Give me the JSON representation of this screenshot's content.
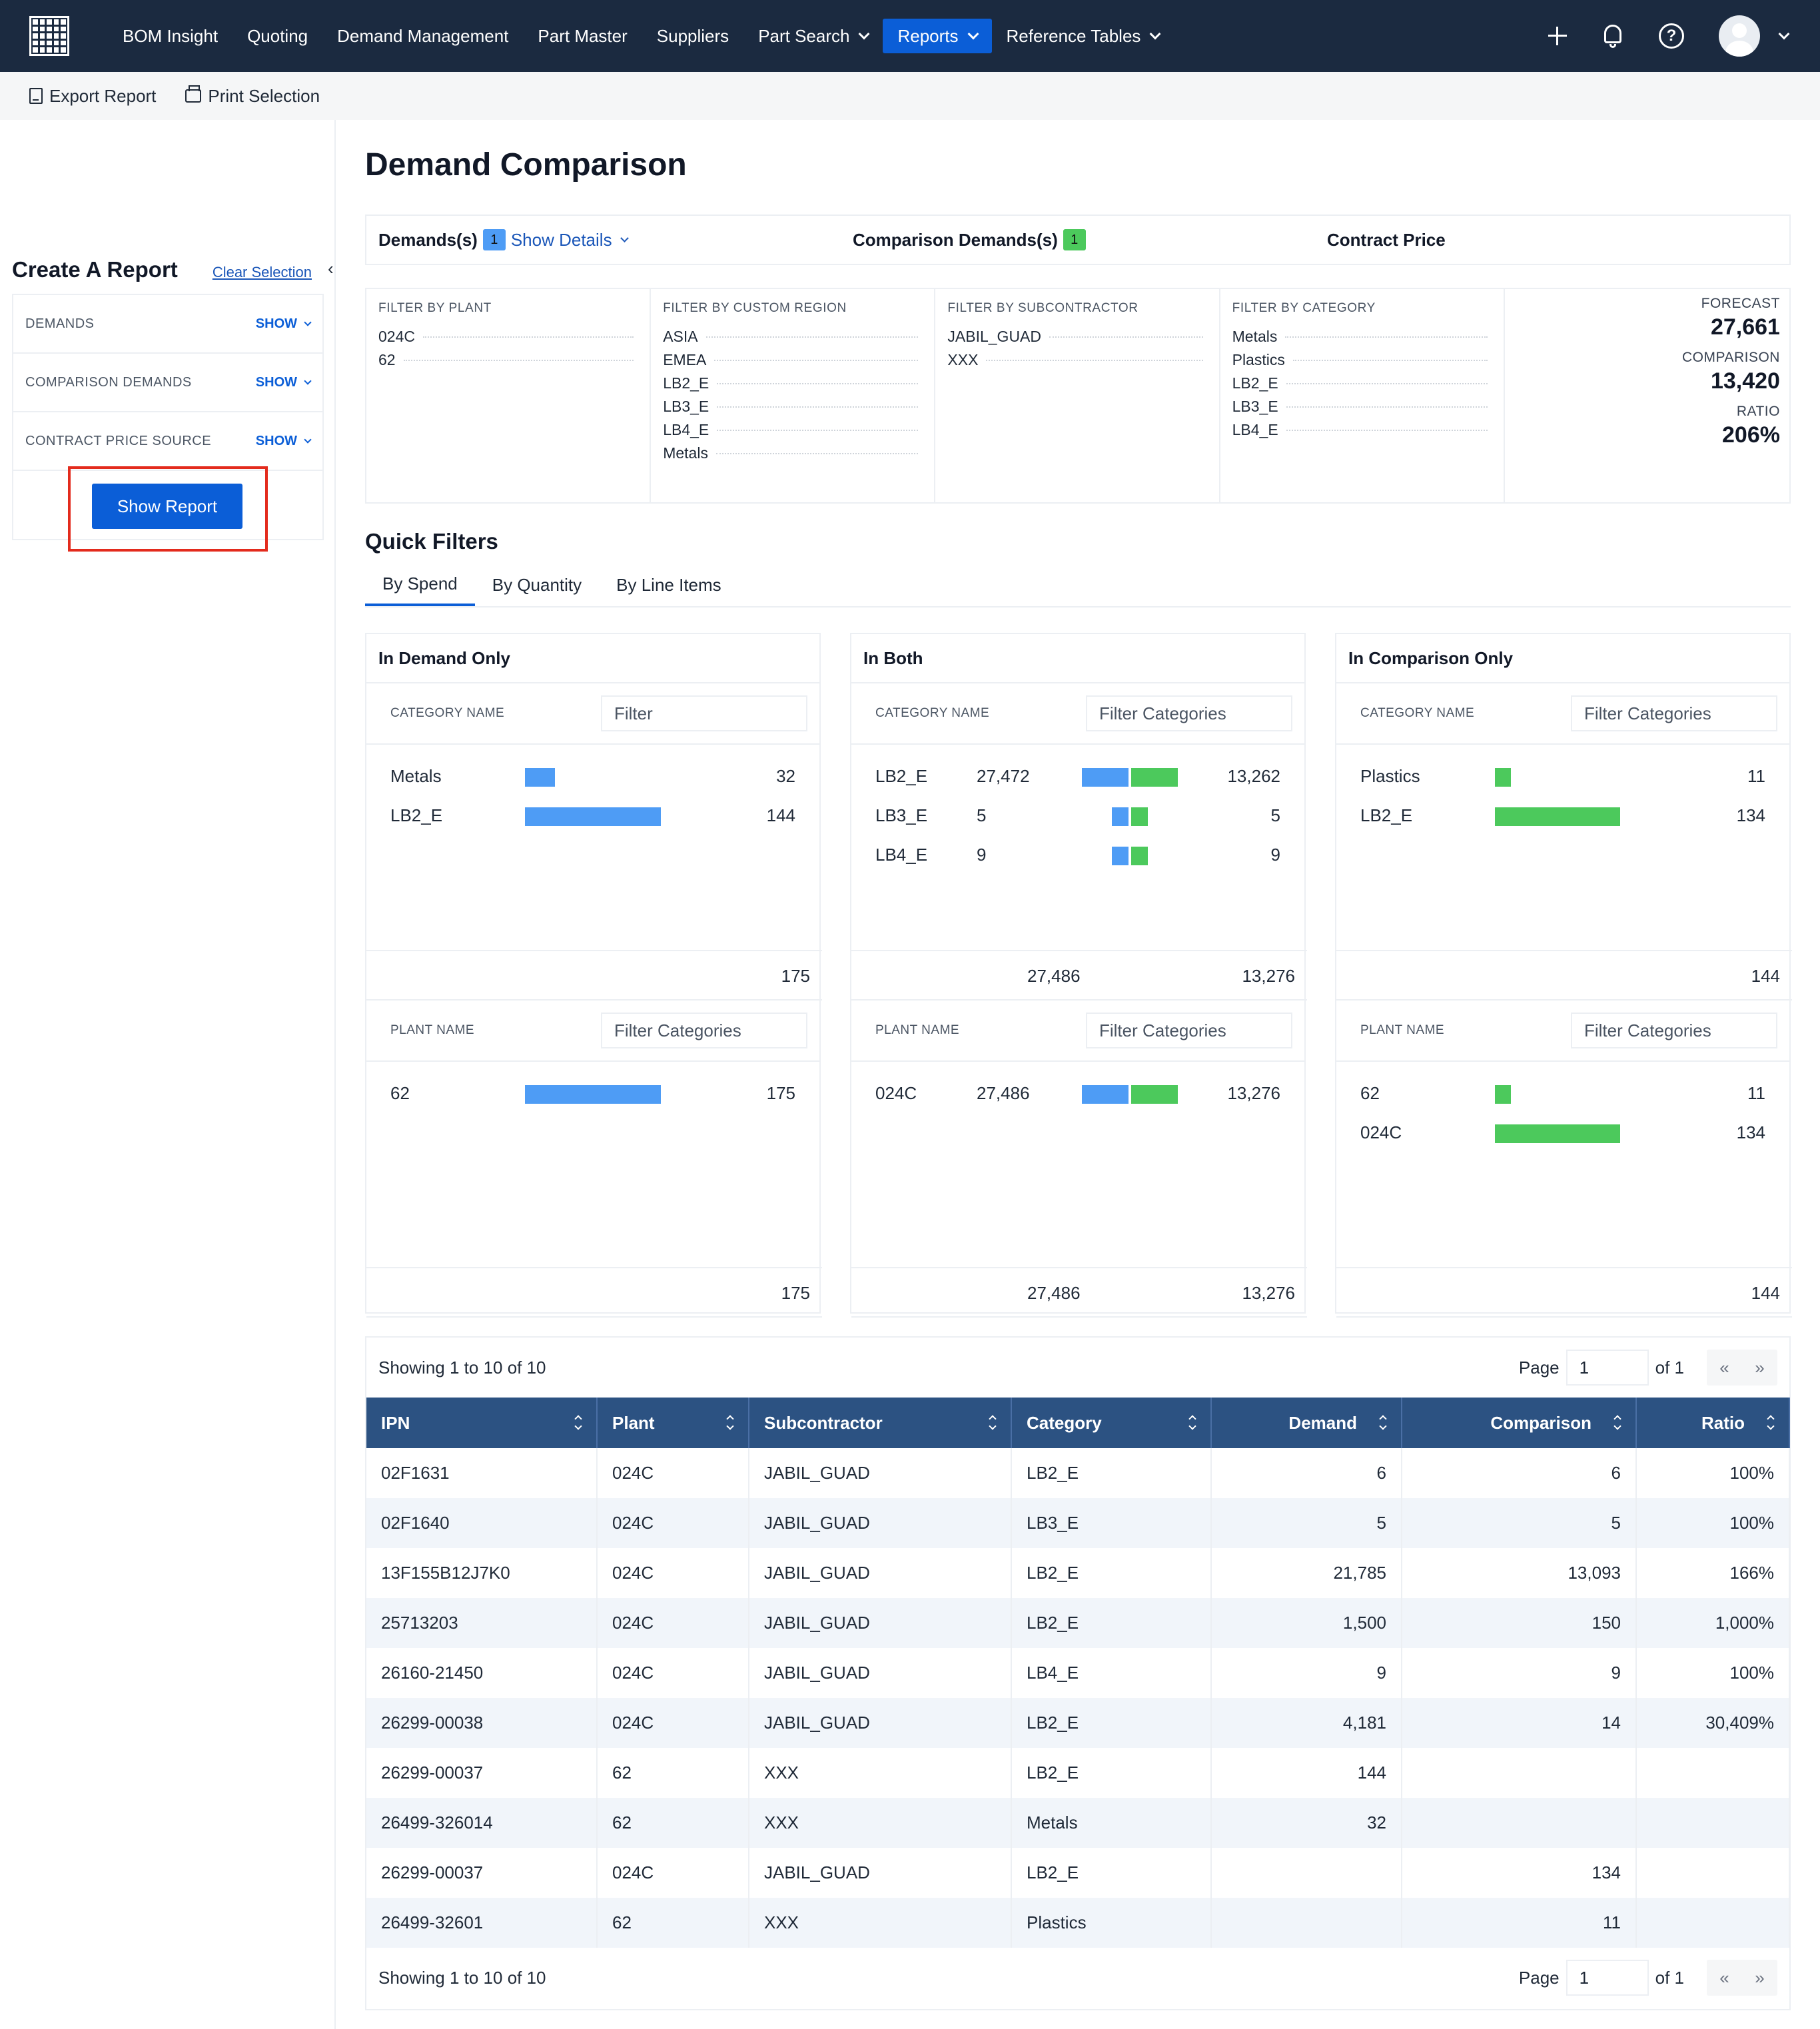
{
  "nav": {
    "items": [
      {
        "label": "BOM Insight",
        "dropdown": false,
        "active": false
      },
      {
        "label": "Quoting",
        "dropdown": false,
        "active": false
      },
      {
        "label": "Demand Management",
        "dropdown": false,
        "active": false
      },
      {
        "label": "Part Master",
        "dropdown": false,
        "active": false
      },
      {
        "label": "Suppliers",
        "dropdown": false,
        "active": false
      },
      {
        "label": "Part Search",
        "dropdown": true,
        "active": false
      },
      {
        "label": "Reports",
        "dropdown": true,
        "active": true
      },
      {
        "label": "Reference Tables",
        "dropdown": true,
        "active": false
      }
    ],
    "help_glyph": "?",
    "icons": [
      "plus-icon",
      "bell-icon",
      "help-icon",
      "avatar"
    ]
  },
  "toolbar": {
    "export": "Export Report",
    "print": "Print Selection"
  },
  "sidebar": {
    "title": "Create A Report",
    "clear": "Clear Selection",
    "collapse_glyph": "‹",
    "rows": [
      {
        "label": "DEMANDS",
        "action": "SHOW"
      },
      {
        "label": "COMPARISON DEMANDS",
        "action": "SHOW"
      },
      {
        "label": "CONTRACT PRICE SOURCE",
        "action": "SHOW"
      }
    ],
    "button": "Show Report"
  },
  "main": {
    "title": "Demand Comparison",
    "summary": {
      "demands_label": "Demands(s)",
      "demands_count": "1",
      "show_details": "Show Details",
      "comparison_label": "Comparison Demands(s)",
      "comparison_count": "1",
      "contract_label": "Contract Price"
    },
    "filters": [
      {
        "head": "FILTER BY PLANT",
        "items": [
          "024C",
          "62"
        ]
      },
      {
        "head": "FILTER BY CUSTOM REGION",
        "items": [
          "ASIA",
          "EMEA",
          "LB2_E",
          "LB3_E",
          "LB4_E",
          "Metals"
        ]
      },
      {
        "head": "FILTER BY SUBCONTRACTOR",
        "items": [
          "JABIL_GUAD",
          "XXX"
        ]
      },
      {
        "head": "FILTER BY CATEGORY",
        "items": [
          "Metals",
          "Plastics",
          "LB2_E",
          "LB3_E",
          "LB4_E"
        ]
      }
    ],
    "kpis": [
      {
        "label": "FORECAST",
        "value": "27,661"
      },
      {
        "label": "COMPARISON",
        "value": "13,420"
      },
      {
        "label": "RATIO",
        "value": "206%"
      }
    ],
    "quick_filters": {
      "title": "Quick Filters",
      "tabs": [
        {
          "label": "By Spend",
          "active": true
        },
        {
          "label": "By Quantity",
          "active": false
        },
        {
          "label": "By Line Items",
          "active": false
        }
      ]
    },
    "cards": {
      "demand_only": {
        "title": "In Demand Only",
        "cat_label": "CATEGORY NAME",
        "cat_filter": "Filter",
        "cat_rows": [
          {
            "name": "Metals",
            "value": "32",
            "frac": 0.22
          },
          {
            "name": "LB2_E",
            "value": "144",
            "frac": 1.0
          }
        ],
        "cat_total": "175",
        "plant_label": "PLANT NAME",
        "plant_filter": "Filter Categories",
        "plant_rows": [
          {
            "name": "62",
            "value": "175",
            "frac": 1.0
          }
        ],
        "plant_total": "175"
      },
      "both": {
        "title": "In Both",
        "cat_label": "CATEGORY NAME",
        "cat_filter": "Filter Categories",
        "cat_rows": [
          {
            "name": "LB2_E",
            "demand": "27,472",
            "comparison": "13,262",
            "frac": 1.0
          },
          {
            "name": "LB3_E",
            "demand": "5",
            "comparison": "5",
            "frac": 0.36
          },
          {
            "name": "LB4_E",
            "demand": "9",
            "comparison": "9",
            "frac": 0.36
          }
        ],
        "cat_total_demand": "27,486",
        "cat_total_comparison": "13,276",
        "plant_label": "PLANT NAME",
        "plant_filter": "Filter Categories",
        "plant_rows": [
          {
            "name": "024C",
            "demand": "27,486",
            "comparison": "13,276",
            "frac": 1.0
          }
        ],
        "plant_total_demand": "27,486",
        "plant_total_comparison": "13,276"
      },
      "comparison_only": {
        "title": "In Comparison Only",
        "cat_label": "CATEGORY NAME",
        "cat_filter": "Filter Categories",
        "cat_rows": [
          {
            "name": "Plastics",
            "value": "11",
            "frac": 0.13
          },
          {
            "name": "LB2_E",
            "value": "134",
            "frac": 1.0
          }
        ],
        "cat_total": "144",
        "plant_label": "PLANT NAME",
        "plant_filter": "Filter Categories",
        "plant_rows": [
          {
            "name": "62",
            "value": "11",
            "frac": 0.13
          },
          {
            "name": "024C",
            "value": "134",
            "frac": 1.0
          }
        ],
        "plant_total": "144"
      }
    },
    "table": {
      "showing": "Showing 1 to 10 of 10",
      "page_label": "Page",
      "page_value": "1",
      "of_label": "of 1",
      "first_glyph": "«",
      "last_glyph": "»",
      "columns": [
        "IPN",
        "Plant",
        "Subcontractor",
        "Category",
        "Demand",
        "Comparison",
        "Ratio"
      ],
      "rows": [
        [
          "02F1631",
          "024C",
          "JABIL_GUAD",
          "LB2_E",
          "6",
          "6",
          "100%"
        ],
        [
          "02F1640",
          "024C",
          "JABIL_GUAD",
          "LB3_E",
          "5",
          "5",
          "100%"
        ],
        [
          "13F155B12J7K0",
          "024C",
          "JABIL_GUAD",
          "LB2_E",
          "21,785",
          "13,093",
          "166%"
        ],
        [
          "25713203",
          "024C",
          "JABIL_GUAD",
          "LB2_E",
          "1,500",
          "150",
          "1,000%"
        ],
        [
          "26160-21450",
          "024C",
          "JABIL_GUAD",
          "LB4_E",
          "9",
          "9",
          "100%"
        ],
        [
          "26299-00038",
          "024C",
          "JABIL_GUAD",
          "LB2_E",
          "4,181",
          "14",
          "30,409%"
        ],
        [
          "26299-00037",
          "62",
          "XXX",
          "LB2_E",
          "144",
          "",
          ""
        ],
        [
          "26499-326014",
          "62",
          "XXX",
          "Metals",
          "32",
          "",
          ""
        ],
        [
          "26299-00037",
          "024C",
          "JABIL_GUAD",
          "LB2_E",
          "",
          "134",
          ""
        ],
        [
          "26499-32601",
          "62",
          "XXX",
          "Plastics",
          "",
          "11",
          ""
        ]
      ]
    }
  }
}
